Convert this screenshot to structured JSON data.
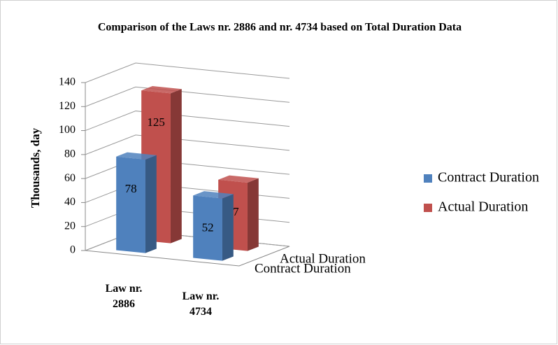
{
  "chart_data": {
    "type": "bar3d",
    "title": "Comparison of the Laws nr. 2886 and nr. 4734 based on Total Duration Data",
    "y_label": "Thousands, day",
    "categories": [
      "Law nr. 2886",
      "Law nr. 4734"
    ],
    "series": [
      {
        "name": "Contract Duration",
        "color": "#4f81bd",
        "values": [
          78,
          52
        ]
      },
      {
        "name": "Actual Duration",
        "color": "#c0504d",
        "values": [
          125,
          57
        ]
      }
    ],
    "ylim": [
      0,
      140
    ],
    "yticks": [
      0,
      20,
      40,
      60,
      80,
      100,
      120,
      140
    ],
    "grid": true,
    "legend": "right"
  }
}
